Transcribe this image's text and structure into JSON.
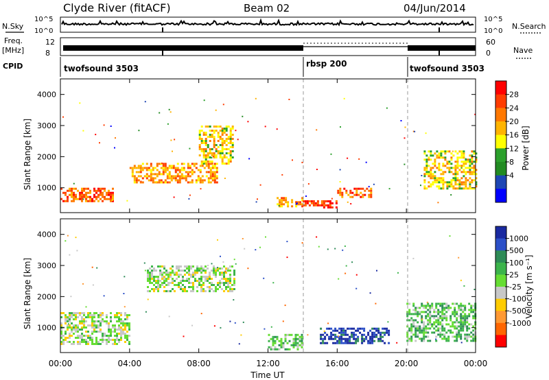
{
  "header": {
    "site": "Clyde River (fitACF)",
    "beam": "Beam 02",
    "date": "04/Jun/2014"
  },
  "top_panels": {
    "nsky_label": "N.Sky",
    "nsearch_label": "N.Search",
    "noise_ticks_left": [
      "10^5",
      "10^0"
    ],
    "noise_ticks_right": [
      "10^5",
      "10^0"
    ],
    "freq_label": "Freq.",
    "freq_unit": "[MHz]",
    "freq_ticks": [
      "12",
      "8"
    ],
    "nave_label": "Nave",
    "nave_ticks": [
      "60",
      "0"
    ],
    "cpid_label": "CPID",
    "cpid_segments": [
      {
        "name": "twofsound 3503",
        "start": 0,
        "end": 14
      },
      {
        "name": "rbsp 200",
        "start": 14,
        "end": 20
      },
      {
        "name": "twofsound 3503",
        "start": 20,
        "end": 24
      }
    ]
  },
  "axes": {
    "xlabel": "Time UT",
    "xticks": [
      "00:00",
      "04:00",
      "08:00",
      "12:00",
      "16:00",
      "20:00",
      "00:00"
    ],
    "ylabel": "Slant Range [km]",
    "yticks": [
      "1000",
      "2000",
      "3000",
      "4000"
    ]
  },
  "colorbars": {
    "power": {
      "label": "Power [dB]",
      "ticks": [
        "28",
        "24",
        "20",
        "16",
        "12",
        "8",
        "4"
      ],
      "colors": [
        "#ff0000",
        "#ff3c00",
        "#ff7800",
        "#ffb400",
        "#ffff00",
        "#2ca02c",
        "#228b22",
        "#1e46b4",
        "#0000ff"
      ]
    },
    "velocity": {
      "label": "Velocity [m s⁻¹]",
      "ticks": [
        "1000",
        "500",
        "100",
        "25",
        "-25",
        "-100",
        "-500",
        "-1000"
      ],
      "colors": [
        "#1a2aa0",
        "#2c50c8",
        "#2e8b57",
        "#3cb44b",
        "#66dd33",
        "#c8c8c8",
        "#ffcc00",
        "#ff9933",
        "#ff6600",
        "#ff0000"
      ]
    }
  },
  "chart_data": [
    {
      "type": "heatmap",
      "title": "Power",
      "xlabel": "Time UT",
      "ylabel": "Slant Range [km]",
      "xlim": [
        0,
        24
      ],
      "ylim": [
        200,
        4500
      ],
      "zlabel": "Power [dB]",
      "zlim": [
        0,
        30
      ],
      "features": [
        {
          "time": [
            0,
            3
          ],
          "range": [
            600,
            1000
          ],
          "power": 22
        },
        {
          "time": [
            4,
            9
          ],
          "range": [
            1200,
            1800
          ],
          "power": 20
        },
        {
          "time": [
            8,
            10
          ],
          "range": [
            1800,
            3000
          ],
          "power": 16
        },
        {
          "time": [
            12.5,
            14
          ],
          "range": [
            400,
            700
          ],
          "power": 20
        },
        {
          "time": [
            14,
            16
          ],
          "range": [
            400,
            600
          ],
          "power": 28
        },
        {
          "time": [
            16,
            18
          ],
          "range": [
            700,
            1000
          ],
          "power": 24
        },
        {
          "time": [
            21,
            24
          ],
          "range": [
            1000,
            2200
          ],
          "power": 14
        }
      ]
    },
    {
      "type": "heatmap",
      "title": "Velocity",
      "xlabel": "Time UT",
      "ylabel": "Slant Range [km]",
      "xlim": [
        0,
        24
      ],
      "ylim": [
        200,
        4500
      ],
      "zlabel": "Velocity [m s⁻¹]",
      "zlim": [
        -1000,
        1000
      ],
      "features": [
        {
          "time": [
            0,
            4
          ],
          "range": [
            500,
            1500
          ],
          "velocity": -200
        },
        {
          "time": [
            5,
            10
          ],
          "range": [
            2200,
            3000
          ],
          "velocity": -100
        },
        {
          "time": [
            12,
            14
          ],
          "range": [
            300,
            800
          ],
          "velocity": 100
        },
        {
          "time": [
            15,
            19
          ],
          "range": [
            500,
            1000
          ],
          "velocity": 700
        },
        {
          "time": [
            20,
            24
          ],
          "range": [
            600,
            1800
          ],
          "velocity": 150
        }
      ]
    }
  ]
}
